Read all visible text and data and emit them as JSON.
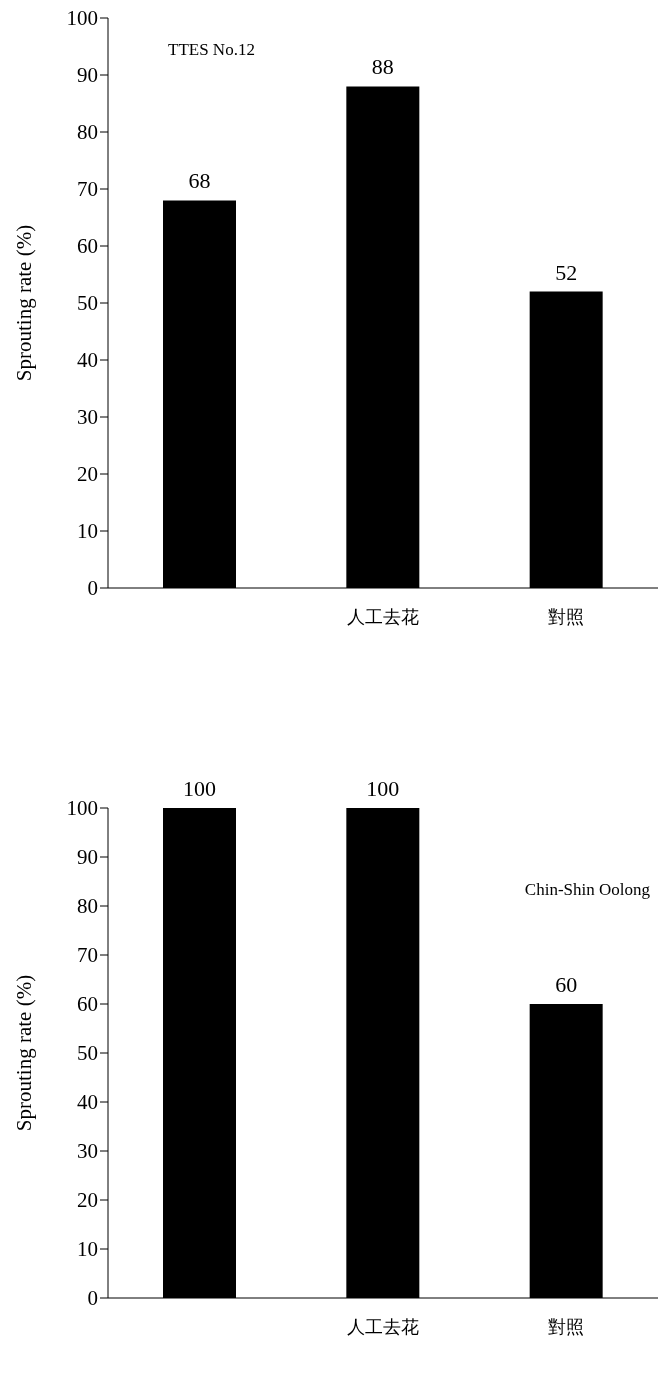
{
  "chart_data": [
    {
      "type": "bar",
      "title": "TTES No.12",
      "ylabel": "Sprouting rate (%)",
      "categories": [
        null,
        "人工去花",
        "對照"
      ],
      "values": [
        68,
        88,
        52
      ],
      "color": "#000000",
      "ylim": [
        0,
        100
      ],
      "yticks": [
        0,
        10,
        20,
        30,
        40,
        50,
        60,
        70,
        80,
        90,
        100
      ],
      "data_labels": true,
      "grid": false,
      "legend": false
    },
    {
      "type": "bar",
      "title": "Chin-Shin Oolong",
      "ylabel": "Sprouting rate (%)",
      "categories": [
        null,
        "人工去花",
        "對照"
      ],
      "values": [
        100,
        100,
        60
      ],
      "color": "#000000",
      "ylim": [
        0,
        100
      ],
      "yticks": [
        0,
        10,
        20,
        30,
        40,
        50,
        60,
        70,
        80,
        90,
        100
      ],
      "data_labels": true,
      "grid": false,
      "legend": false
    }
  ]
}
